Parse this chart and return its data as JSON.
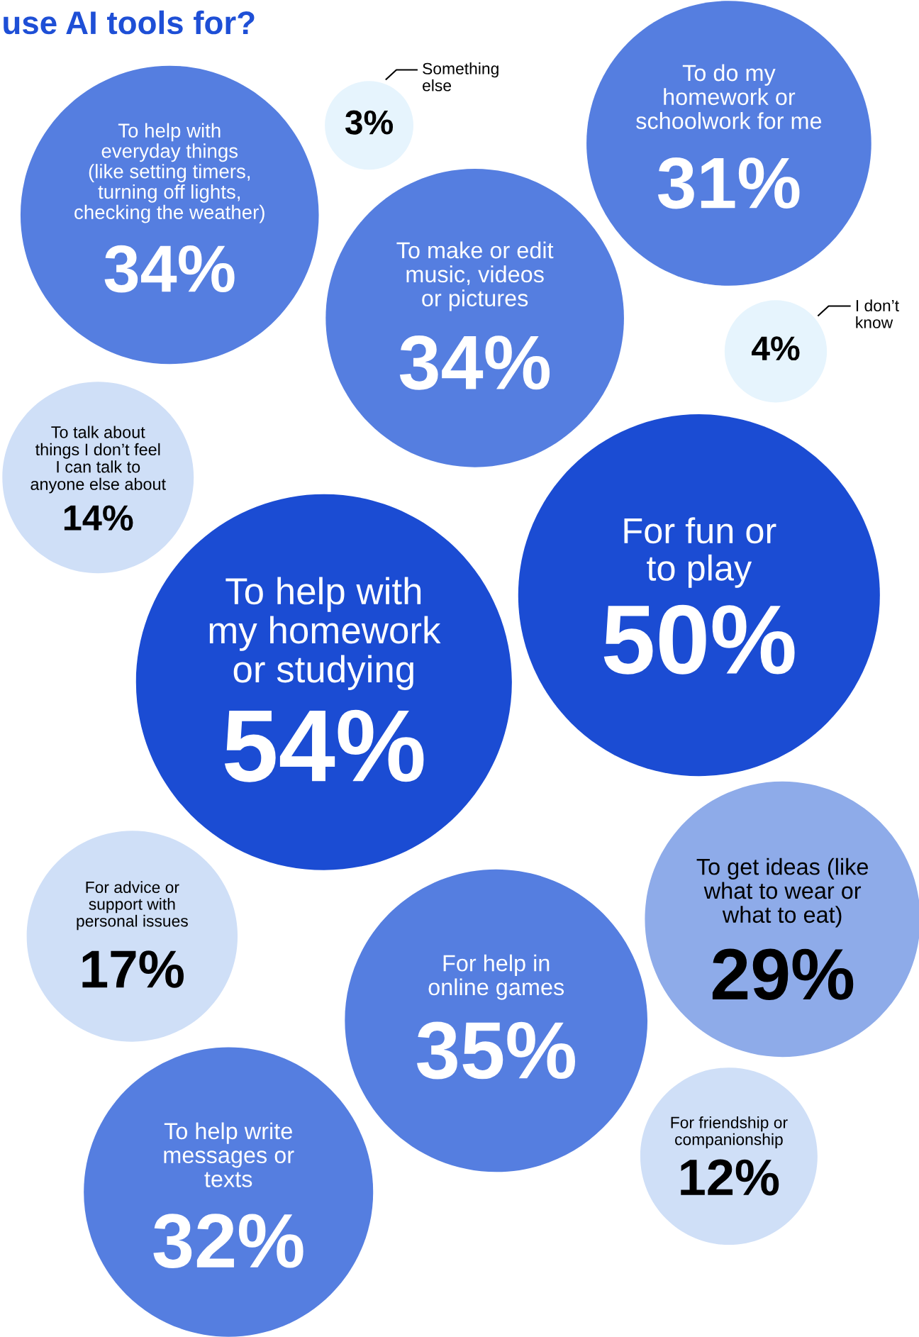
{
  "chart_data": {
    "type": "other",
    "title": "use AI tools for?",
    "categories": [
      "To help with\neveryday things\n(like setting timers,\nturning off lights,\nchecking the weather)",
      "Something\nelse",
      "To do my\nhomework or\nschoolwork for me",
      "To make or edit\nmusic, videos\nor pictures",
      "I don’t\nknow",
      "To talk about\nthings I don’t feel\nI can talk to\nanyone else about",
      "For fun or\nto play",
      "To help with\nmy homework\nor studying",
      "For advice or\nsupport with\npersonal issues",
      "To get ideas (like\nwhat to wear or\nwhat to eat)",
      "For help in\nonline games",
      "For friendship or\ncompanionship",
      "To help write\nmessages or\ntexts"
    ],
    "values": [
      34,
      3,
      31,
      34,
      4,
      14,
      50,
      54,
      17,
      29,
      35,
      12,
      32
    ],
    "value_labels": [
      "34%",
      "3%",
      "31%",
      "34%",
      "4%",
      "14%",
      "50%",
      "54%",
      "17%",
      "29%",
      "35%",
      "12%",
      "32%"
    ],
    "colors": [
      "#557ee0",
      "#e6f4fd",
      "#557ee0",
      "#557ee0",
      "#e6f4fd",
      "#cfdff7",
      "#1b4cd3",
      "#1b4cd3",
      "#cfdff7",
      "#8eabe9",
      "#557ee0",
      "#cfdff7",
      "#557ee0"
    ]
  }
}
